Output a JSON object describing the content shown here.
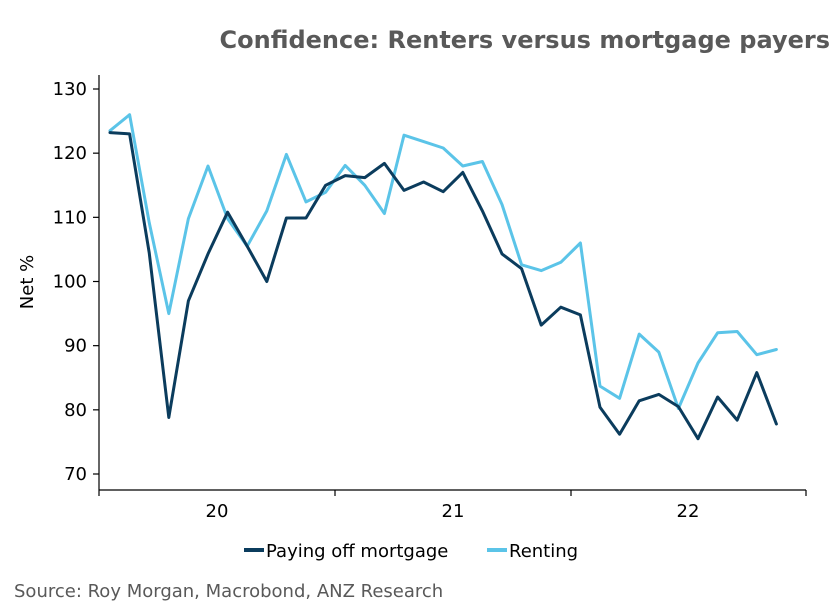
{
  "chart_data": {
    "type": "line",
    "title": "Confidence: Renters versus mortgage payers",
    "ylabel": "Net %",
    "xlabel": "",
    "ylim": [
      70,
      130
    ],
    "yticks": [
      70,
      80,
      90,
      100,
      110,
      120,
      130
    ],
    "x_ticks": [
      "20",
      "21",
      "22"
    ],
    "grid": false,
    "legend_position": "bottom",
    "series": [
      {
        "name": "Paying off mortgage",
        "color": "#0b3c5d",
        "values": [
          123.2,
          123.0,
          104.5,
          78.8,
          97.0,
          104.3,
          110.8,
          105.5,
          100.0,
          109.9,
          109.9,
          115.0,
          116.5,
          116.2,
          118.4,
          114.2,
          115.5,
          114.0,
          117.0,
          111.0,
          104.3,
          102.0,
          93.2,
          96.0,
          94.8,
          80.4,
          76.2,
          81.4,
          82.4,
          80.5,
          75.5,
          82.0,
          78.4,
          85.8,
          77.8
        ]
      },
      {
        "name": "Renting",
        "color": "#5bc4e8",
        "values": [
          123.5,
          126.0,
          109.2,
          95.0,
          109.8,
          118.0,
          109.8,
          105.5,
          111.0,
          119.8,
          112.4,
          113.9,
          118.1,
          115.0,
          110.6,
          122.8,
          121.8,
          120.8,
          118.0,
          118.7,
          112.0,
          102.6,
          101.7,
          103.0,
          106.0,
          83.7,
          81.8,
          91.8,
          89.0,
          80.2,
          87.3,
          92.0,
          92.2,
          88.6,
          89.4
        ]
      }
    ]
  },
  "footer": {
    "source": "Source: Roy Morgan, Macrobond, ANZ Research"
  }
}
